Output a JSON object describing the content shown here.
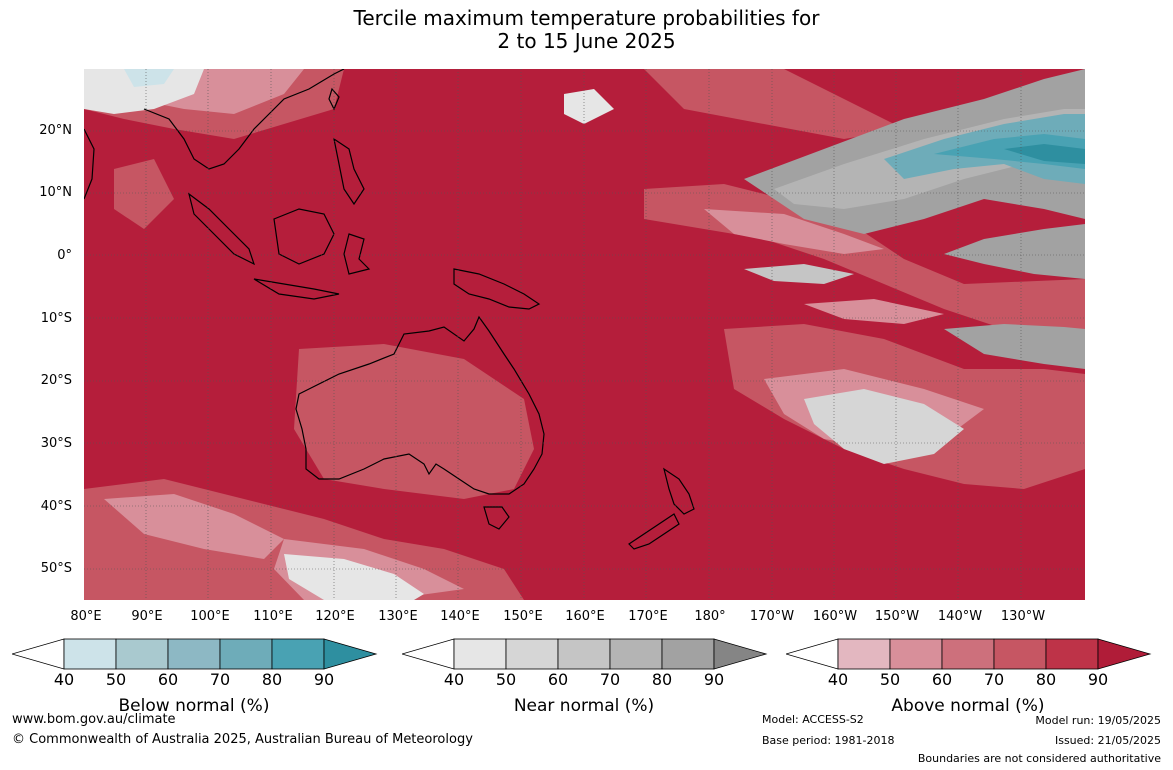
{
  "title_line1": "Tercile maximum temperature probabilities for",
  "title_line2": "2 to 15 June 2025",
  "lat_labels": [
    "20°N",
    "10°N",
    "0°",
    "10°S",
    "20°S",
    "30°S",
    "40°S",
    "50°S"
  ],
  "lon_labels": [
    "80°E",
    "90°E",
    "100°E",
    "110°E",
    "120°E",
    "130°E",
    "140°E",
    "150°E",
    "160°E",
    "170°E",
    "180°",
    "170°W",
    "160°W",
    "150°W",
    "140°W",
    "130°W"
  ],
  "colorbars": [
    {
      "label": "Below normal (%)",
      "ticks": [
        "40",
        "50",
        "60",
        "70",
        "80",
        "90"
      ],
      "colors": [
        "#ffffff",
        "#cde3e9",
        "#a9c9cf",
        "#8db8c4",
        "#6eacb9",
        "#49a2b3",
        "#2e8fa0"
      ]
    },
    {
      "label": "Near normal (%)",
      "ticks": [
        "40",
        "50",
        "60",
        "70",
        "80",
        "90"
      ],
      "colors": [
        "#ffffff",
        "#e6e6e6",
        "#d6d6d6",
        "#c5c5c5",
        "#b4b4b4",
        "#a2a2a2",
        "#858585"
      ]
    },
    {
      "label": "Above normal (%)",
      "ticks": [
        "40",
        "50",
        "60",
        "70",
        "80",
        "90"
      ],
      "colors": [
        "#ffffff",
        "#e3b7c0",
        "#d88f9a",
        "#cd707c",
        "#c65663",
        "#be3348",
        "#b01c38"
      ]
    }
  ],
  "footer": {
    "website": "www.bom.gov.au/climate",
    "copyright": "© Commonwealth of Australia 2025, Australian Bureau of Meteorology",
    "model": "Model: ACCESS-S2",
    "base_period": "Base period: 1981-2018",
    "model_run": "Model run: 19/05/2025",
    "issued": "Issued: 21/05/2025",
    "disclaimer": "Boundaries are not considered authoritative"
  }
}
